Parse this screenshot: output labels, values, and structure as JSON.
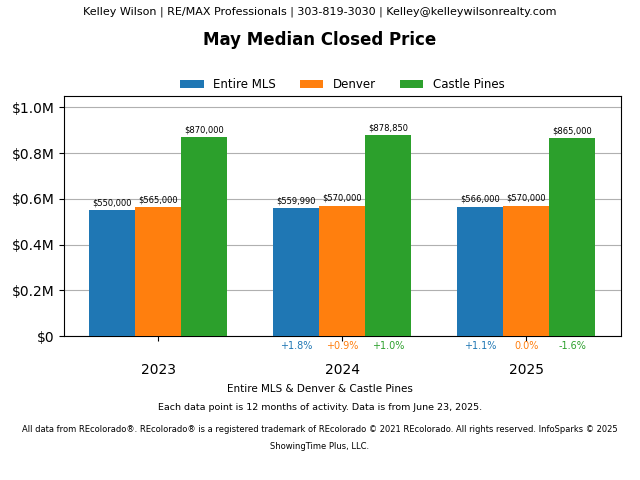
{
  "chart_data": {
    "type": "bar",
    "header": "Kelley Wilson | RE/MAX Professionals | 303-819-3030 | Kelley@kelleywilsonrealty.com",
    "title": "May Median Closed Price",
    "categories": [
      "2023",
      "2024",
      "2025"
    ],
    "series": [
      {
        "name": "Entire MLS",
        "values": [
          550000,
          559990,
          566000
        ],
        "value_labels": [
          "$550,000",
          "$559,990",
          "$566,000"
        ],
        "changes": [
          null,
          "+1.8%",
          "+1.1%"
        ]
      },
      {
        "name": "Denver",
        "values": [
          565000,
          570000,
          570000
        ],
        "value_labels": [
          "$565,000",
          "$570,000",
          "$570,000"
        ],
        "changes": [
          null,
          "+0.9%",
          "0.0%"
        ]
      },
      {
        "name": "Castle Pines",
        "values": [
          870000,
          878850,
          865000
        ],
        "value_labels": [
          "$870,000",
          "$878,850",
          "$865,000"
        ],
        "changes": [
          null,
          "+1.0%",
          "-1.6%"
        ]
      }
    ],
    "ylim": [
      0,
      1050000
    ],
    "yticks": [
      {
        "value": 0,
        "label": "$0"
      },
      {
        "value": 200000,
        "label": "$0.2M"
      },
      {
        "value": 400000,
        "label": "$0.4M"
      },
      {
        "value": 600000,
        "label": "$0.6M"
      },
      {
        "value": 800000,
        "label": "$0.8M"
      },
      {
        "value": 1000000,
        "label": "$1.0M"
      }
    ],
    "grid": true,
    "legend": "upper center",
    "data_labels": true,
    "footer": [
      "Entire MLS & Denver & Castle Pines",
      "Each data point is 12 months of activity. Data is from June 23, 2025.",
      "All data from REcolorado®. REcolorado® is a registered trademark of REcolorado © 2021 REcolorado. All rights reserved. InfoSparks © 2025",
      "ShowingTime Plus, LLC."
    ]
  }
}
